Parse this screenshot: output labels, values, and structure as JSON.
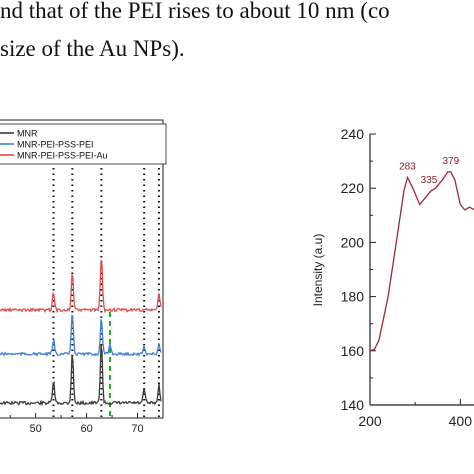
{
  "text": {
    "line1": "nd that of the PEI rises to about 10 nm (co",
    "line2": "size of the Au NPs)."
  },
  "chart_data": [
    {
      "type": "line",
      "series": [
        {
          "name": "MNR",
          "color": "#3a3a3a"
        },
        {
          "name": "MNR-PEI-PSS-PEI",
          "color": "#3f7fd4"
        },
        {
          "name": "MNR-PEI-PSS-PEI-Au",
          "color": "#e04a4a"
        }
      ],
      "xticks": [
        50,
        60,
        70
      ],
      "xlim": [
        43,
        75
      ],
      "dotted_lines_x": [
        53.5,
        57.2,
        62.9,
        71.3,
        74.2
      ],
      "dashed_line_x": 64.6,
      "legend": "top-left"
    },
    {
      "type": "line",
      "ylabel": "Intensity (a.u)",
      "xlabel": "",
      "xticks": [
        200,
        400
      ],
      "yticks": [
        140,
        160,
        180,
        200,
        220,
        240
      ],
      "xlim": [
        200,
        510
      ],
      "ylim": [
        140,
        240
      ],
      "annotations": [
        "283",
        "335",
        "379"
      ],
      "series": [
        {
          "color": "#9b2b3a",
          "x": [
            200,
            210,
            220,
            240,
            260,
            275,
            283,
            295,
            310,
            325,
            335,
            345,
            360,
            372,
            379,
            388,
            400,
            410,
            420,
            432
          ],
          "y": [
            160,
            160.5,
            164,
            180,
            202,
            219,
            224,
            220,
            214,
            217,
            219,
            220,
            223,
            226,
            226,
            223,
            214,
            212,
            213,
            212
          ]
        }
      ]
    }
  ]
}
